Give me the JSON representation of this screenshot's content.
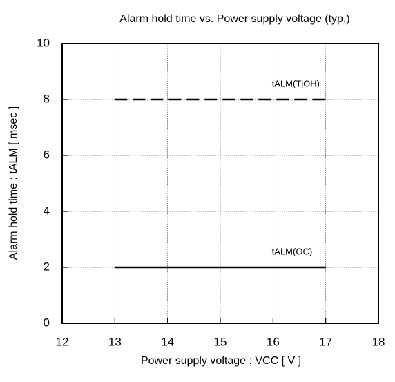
{
  "chart_data": {
    "type": "line",
    "title": "Alarm hold time vs. Power supply voltage (typ.)",
    "x_label": "Power supply voltage : VCC [ V ]",
    "y_label": "Alarm hold time : tALM [ msec ]",
    "x": [
      13,
      17
    ],
    "series": [
      {
        "name": "tALM(TjOH)",
        "color": "#000000",
        "linestyle": "dashed",
        "values": [
          8,
          8
        ]
      },
      {
        "name": "tALM(OC)",
        "color": "#000000",
        "linestyle": "solid",
        "values": [
          2,
          2
        ]
      }
    ],
    "xlim": [
      12,
      18
    ],
    "xticks": [
      12,
      13,
      14,
      15,
      16,
      17,
      18
    ],
    "ylim": [
      0,
      10
    ],
    "yticks": [
      0,
      2,
      4,
      6,
      8,
      10
    ],
    "grid": true
  }
}
